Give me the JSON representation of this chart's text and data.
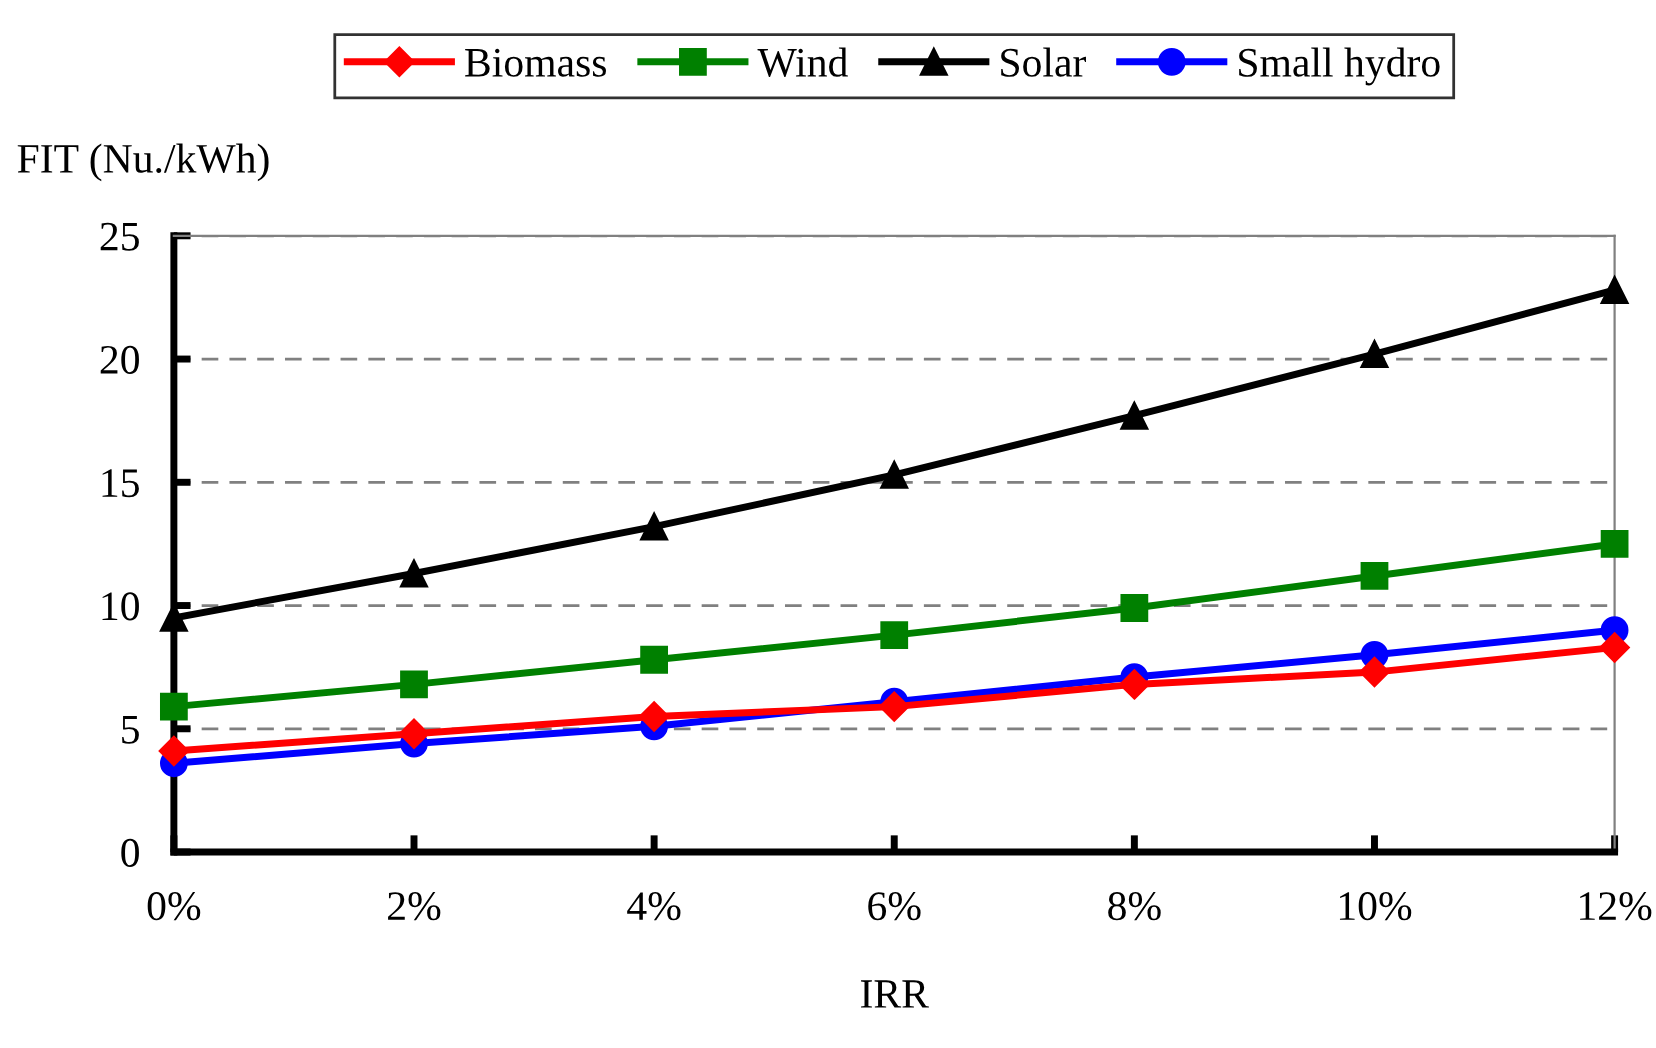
{
  "chart_data": {
    "type": "line",
    "xlabel": "IRR",
    "ylabel": "FIT (Nu./kWh)",
    "categories": [
      "0%",
      "2%",
      "4%",
      "6%",
      "8%",
      "10%",
      "12%"
    ],
    "series": [
      {
        "name": "Biomass",
        "color": "#ff0000",
        "marker": "diamond",
        "values": [
          4.1,
          4.8,
          5.5,
          5.9,
          6.8,
          7.3,
          8.3
        ]
      },
      {
        "name": "Wind",
        "color": "#008000",
        "marker": "square",
        "values": [
          5.9,
          6.8,
          7.8,
          8.8,
          9.9,
          11.2,
          12.5
        ]
      },
      {
        "name": "Solar",
        "color": "#000000",
        "marker": "triangle",
        "values": [
          9.5,
          11.3,
          13.2,
          15.3,
          17.7,
          20.2,
          22.8
        ]
      },
      {
        "name": "Small hydro",
        "color": "#0000ff",
        "marker": "circle",
        "values": [
          3.6,
          4.4,
          5.1,
          6.1,
          7.1,
          8.0,
          9.0
        ]
      }
    ],
    "ylim": [
      0,
      25
    ],
    "yticks": [
      0,
      5,
      10,
      15,
      20,
      25
    ],
    "grid": "y",
    "legend": "top",
    "line_style": "solid"
  }
}
